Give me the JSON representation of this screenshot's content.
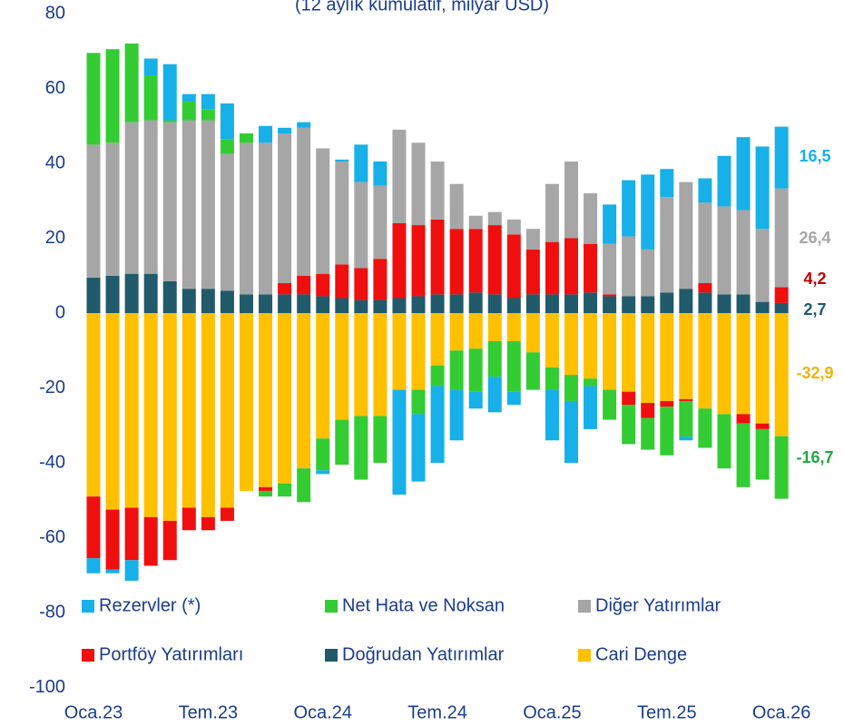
{
  "chart_data": {
    "type": "stacked-bar",
    "subtitle": "(12 aylık kümülatif, milyar USD)",
    "categories": [
      "Oca.23",
      null,
      null,
      null,
      null,
      null,
      "Tem.23",
      null,
      null,
      null,
      null,
      null,
      "Oca.24",
      null,
      null,
      null,
      null,
      null,
      "Tem.24",
      null,
      null,
      null,
      null,
      null,
      "Oca.25",
      null,
      null,
      null,
      null,
      null,
      "Tem.25",
      null,
      null,
      null,
      null,
      null,
      "Oca.26"
    ],
    "ylim": [
      -100,
      80
    ],
    "yticks": [
      80,
      60,
      40,
      20,
      0,
      -20,
      -40,
      -60,
      -80,
      -100
    ],
    "series": [
      {
        "name": "Cari Denge",
        "color": "#ffc000",
        "label_color": "#f0b400",
        "values": [
          -49,
          -52.5,
          -52,
          -54.5,
          -55.5,
          -52,
          -54.5,
          -52,
          -47.5,
          -46.5,
          -45.5,
          -41.5,
          -33.5,
          -28.5,
          -27.5,
          -27.5,
          -20.5,
          -20.5,
          -14,
          -10,
          -9.5,
          -7.5,
          -7.5,
          -10.5,
          -14.5,
          -16.5,
          -17.5,
          -20.5,
          -21,
          -24,
          -23.5,
          -23,
          -25.5,
          -27,
          -27,
          -29.5,
          -32.9
        ],
        "value_labels": [
          null,
          null,
          null,
          null,
          null,
          null,
          null,
          null,
          null,
          null,
          null,
          null,
          null,
          null,
          null,
          null,
          null,
          null,
          null,
          null,
          null,
          null,
          null,
          null,
          null,
          null,
          null,
          null,
          null,
          null,
          null,
          null,
          null,
          null,
          null,
          null,
          "-32,9"
        ]
      },
      {
        "name": "Doğrudan Yatırımlar",
        "color": "#215a6b",
        "label_color": "#215a6b",
        "values": [
          9.5,
          10,
          10.5,
          10.5,
          8.5,
          6.5,
          6.5,
          6,
          5,
          5,
          5,
          5,
          4.5,
          4,
          3.5,
          3.5,
          4,
          4.5,
          5,
          5,
          5.5,
          5,
          4,
          5,
          5,
          5,
          5.5,
          4.5,
          4.5,
          4.5,
          5.5,
          6.5,
          5.5,
          5,
          5,
          3,
          2.7
        ],
        "value_labels": [
          null,
          null,
          null,
          null,
          null,
          null,
          null,
          null,
          null,
          null,
          null,
          null,
          null,
          null,
          null,
          null,
          null,
          null,
          null,
          null,
          null,
          null,
          null,
          null,
          null,
          null,
          null,
          null,
          null,
          null,
          null,
          null,
          null,
          null,
          null,
          null,
          "2,7"
        ]
      },
      {
        "name": "Portföy Yatırımları",
        "color": "#f00f0f",
        "label_color": "#c00000",
        "values": [
          -16.5,
          -16,
          -14,
          -13,
          -10.5,
          -6,
          -3.5,
          -3.5,
          0,
          -1,
          3,
          5,
          6,
          9,
          8.5,
          11,
          20,
          19,
          20,
          17.5,
          17,
          18.5,
          17,
          12,
          14,
          15,
          13,
          0.5,
          -3.5,
          -4,
          -1.5,
          -0.5,
          2.5,
          0,
          -2.5,
          -1.5,
          4.2
        ],
        "value_labels": [
          null,
          null,
          null,
          null,
          null,
          null,
          null,
          null,
          null,
          null,
          null,
          null,
          null,
          null,
          null,
          null,
          null,
          null,
          null,
          null,
          null,
          null,
          null,
          null,
          null,
          null,
          null,
          null,
          null,
          null,
          null,
          null,
          null,
          null,
          null,
          null,
          "4,2"
        ]
      },
      {
        "name": "Diğer Yatırımlar",
        "color": "#a6a6a6",
        "label_color": "#a6a6a6",
        "values": [
          35.5,
          35.5,
          40.5,
          41,
          42.5,
          45,
          45,
          36.5,
          40.5,
          40.5,
          40,
          39.5,
          33.5,
          27.5,
          23,
          19.5,
          25,
          22,
          15.5,
          12,
          3.5,
          3.5,
          4,
          5.5,
          15.5,
          20.5,
          13.5,
          13.5,
          16,
          12.5,
          25.5,
          28.5,
          21.5,
          23.5,
          22.5,
          19.5,
          26.4
        ],
        "value_labels": [
          null,
          null,
          null,
          null,
          null,
          null,
          null,
          null,
          null,
          null,
          null,
          null,
          null,
          null,
          null,
          null,
          null,
          null,
          null,
          null,
          null,
          null,
          null,
          null,
          null,
          null,
          null,
          null,
          null,
          null,
          null,
          null,
          null,
          null,
          null,
          null,
          "26,4"
        ]
      },
      {
        "name": "Net Hata ve Noksan",
        "color": "#33cc33",
        "label_color": "#1fa845",
        "values": [
          24.5,
          25,
          21,
          12,
          0.5,
          5,
          3,
          4,
          2.5,
          -1.5,
          -3.5,
          -9,
          -8.5,
          -12,
          -17,
          -12.5,
          0,
          -6.5,
          -5.5,
          -10.5,
          -11.5,
          -9.5,
          -13.5,
          -10,
          -6,
          -7,
          -2,
          -8,
          -10.5,
          -8.5,
          -13,
          -9.5,
          -10.5,
          -14.5,
          -17,
          -13.5,
          -16.7
        ],
        "value_labels": [
          null,
          null,
          null,
          null,
          null,
          null,
          null,
          null,
          null,
          null,
          null,
          null,
          null,
          null,
          null,
          null,
          null,
          null,
          null,
          null,
          null,
          null,
          null,
          null,
          null,
          null,
          null,
          null,
          null,
          null,
          null,
          null,
          null,
          null,
          null,
          null,
          "-16,7"
        ]
      },
      {
        "name": "Rezervler (*)",
        "color": "#17b0e8",
        "label_color": "#17b0e8",
        "values": [
          -4,
          -1,
          -5.5,
          4.5,
          15,
          2,
          4,
          9.5,
          0,
          4.5,
          1.5,
          1.5,
          -1,
          0.5,
          10,
          6.5,
          -28,
          -18,
          -20.5,
          -13.5,
          -4.5,
          -9.5,
          -3.5,
          0,
          -13.5,
          -16.5,
          -11.5,
          10.5,
          15,
          20,
          7.5,
          -1,
          6.5,
          13.5,
          19.5,
          22,
          16.5
        ],
        "value_labels": [
          null,
          null,
          null,
          null,
          null,
          null,
          null,
          null,
          null,
          null,
          null,
          null,
          null,
          null,
          null,
          null,
          null,
          null,
          null,
          null,
          null,
          null,
          null,
          null,
          null,
          null,
          null,
          null,
          null,
          null,
          null,
          null,
          null,
          null,
          null,
          null,
          "16,5"
        ]
      }
    ]
  }
}
